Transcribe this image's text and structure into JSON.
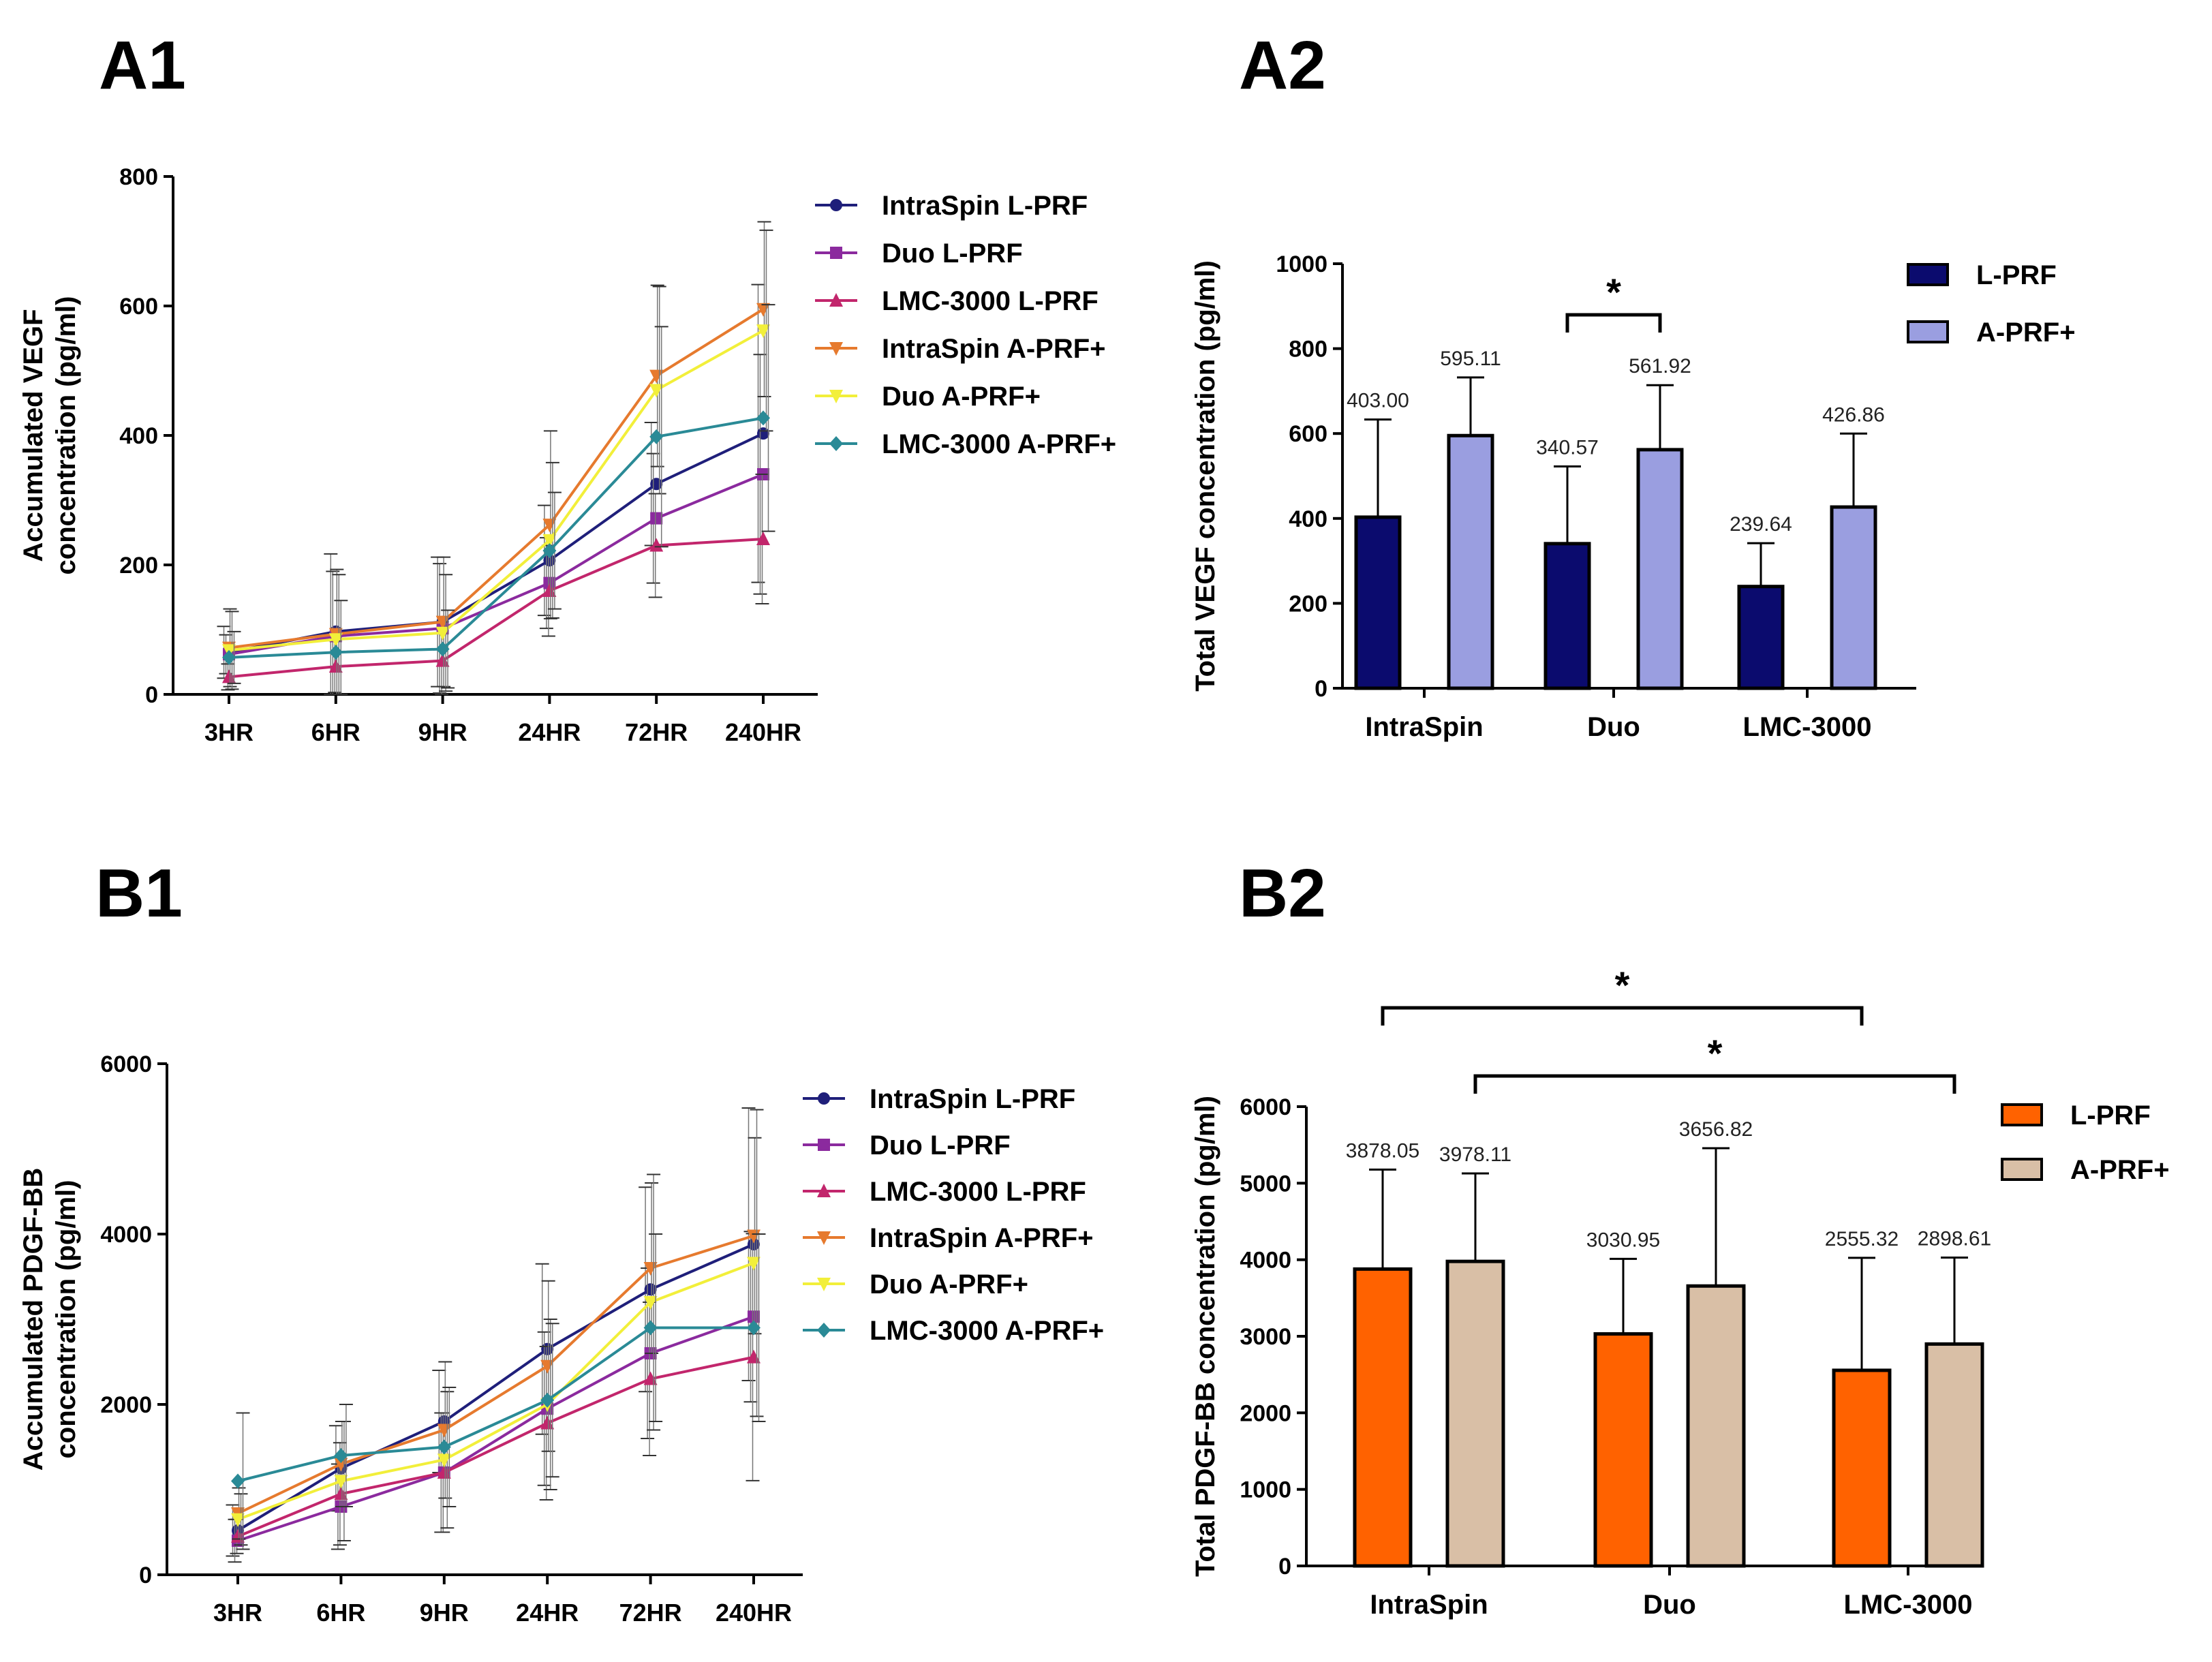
{
  "panels": {
    "a1": "A1",
    "a2": "A2",
    "b1": "B1",
    "b2": "B2"
  },
  "chart_data": [
    {
      "id": "A1",
      "type": "line",
      "ylabel_line1": "Accumulated VEGF",
      "ylabel_line2": "concentration (pg/ml)",
      "ylim": [
        0,
        800
      ],
      "yticks": [
        "0",
        "200",
        "400",
        "600",
        "800"
      ],
      "categories": [
        "3HR",
        "6HR",
        "9HR",
        "24HR",
        "72HR",
        "240HR"
      ],
      "series": [
        {
          "name": "IntraSpin L-PRF",
          "color": "#1f1f7a",
          "marker": "circle",
          "values": [
            65,
            97,
            112,
            207,
            325,
            403
          ],
          "err": [
            40,
            120,
            100,
            85,
            95,
            230
          ]
        },
        {
          "name": "Duo L-PRF",
          "color": "#8b2a9e",
          "marker": "square",
          "values": [
            62,
            90,
            102,
            172,
            272,
            340
          ],
          "err": [
            30,
            100,
            100,
            70,
            100,
            185
          ]
        },
        {
          "name": "LMC-3000 L-PRF",
          "color": "#c2266c",
          "marker": "triangle-up",
          "values": [
            27,
            43,
            52,
            160,
            230,
            240
          ],
          "err": [
            20,
            40,
            60,
            70,
            80,
            100
          ]
        },
        {
          "name": "IntraSpin A-PRF+",
          "color": "#e67a2e",
          "marker": "triangle-down",
          "values": [
            72,
            93,
            112,
            262,
            492,
            595
          ],
          "err": [
            60,
            100,
            100,
            145,
            140,
            135
          ]
        },
        {
          "name": "Duo A-PRF+",
          "color": "#f2ef3a",
          "marker": "triangle-down",
          "values": [
            68,
            85,
            95,
            238,
            470,
            562
          ],
          "err": [
            60,
            100,
            90,
            120,
            160,
            155
          ]
        },
        {
          "name": "LMC-3000 A-PRF+",
          "color": "#2a8a96",
          "marker": "diamond",
          "values": [
            57,
            65,
            70,
            222,
            398,
            427
          ],
          "err": [
            40,
            80,
            60,
            90,
            170,
            175
          ]
        }
      ]
    },
    {
      "id": "A2",
      "type": "bar",
      "ylabel": "Total VEGF concentration (pg/ml)",
      "ylim": [
        0,
        1000
      ],
      "yticks": [
        "0",
        "200",
        "400",
        "600",
        "800",
        "1000"
      ],
      "categories": [
        "IntraSpin",
        "Duo",
        "LMC-3000"
      ],
      "series": [
        {
          "name": "L-PRF",
          "color": "#0b0b6e",
          "values": [
            403.0,
            340.57,
            239.64
          ],
          "labels": [
            "403.00",
            "340.57",
            "239.64"
          ],
          "err": [
            230,
            182,
            102
          ]
        },
        {
          "name": "A-PRF+",
          "color": "#9a9ee0",
          "values": [
            595.11,
            561.92,
            426.86
          ],
          "labels": [
            "595.11",
            "561.92",
            "426.86"
          ],
          "err": [
            137,
            152,
            173
          ]
        }
      ],
      "significance": [
        {
          "label": "*",
          "from": "Duo L-PRF",
          "to": "Duo A-PRF+"
        }
      ]
    },
    {
      "id": "B1",
      "type": "line",
      "ylabel_line1": "Accumulated PDGF-BB",
      "ylabel_line2": "concentration (pg/ml)",
      "ylim": [
        0,
        6000
      ],
      "yticks": [
        "0",
        "2000",
        "4000",
        "6000"
      ],
      "categories": [
        "3HR",
        "6HR",
        "9HR",
        "24HR",
        "72HR",
        "240HR"
      ],
      "series": [
        {
          "name": "IntraSpin L-PRF",
          "color": "#1f1f7a",
          "marker": "circle",
          "values": [
            520,
            1250,
            1800,
            2650,
            3350,
            3880
          ],
          "err": [
            300,
            500,
            600,
            1000,
            1200,
            1600
          ]
        },
        {
          "name": "Duo L-PRF",
          "color": "#8b2a9e",
          "marker": "square",
          "values": [
            400,
            800,
            1200,
            1950,
            2600,
            3030
          ],
          "err": [
            250,
            500,
            700,
            900,
            1000,
            1000
          ]
        },
        {
          "name": "LMC-3000 L-PRF",
          "color": "#c2266c",
          "marker": "triangle-up",
          "values": [
            450,
            950,
            1200,
            1780,
            2300,
            2555
          ],
          "err": [
            200,
            600,
            700,
            900,
            900,
            1450
          ]
        },
        {
          "name": "IntraSpin A-PRF+",
          "color": "#e67a2e",
          "marker": "triangle-down",
          "values": [
            720,
            1300,
            1700,
            2450,
            3600,
            3980
          ],
          "err": [
            300,
            500,
            800,
            1000,
            1000,
            1150
          ]
        },
        {
          "name": "Duo A-PRF+",
          "color": "#f2ef3a",
          "marker": "triangle-down",
          "values": [
            650,
            1100,
            1350,
            2000,
            3200,
            3660
          ],
          "err": [
            300,
            700,
            800,
            1000,
            1500,
            1800
          ]
        },
        {
          "name": "LMC-3000 A-PRF+",
          "color": "#2a8a96",
          "marker": "diamond",
          "values": [
            1100,
            1400,
            1500,
            2050,
            2900,
            2900
          ],
          "err": [
            800,
            600,
            700,
            900,
            1100,
            1100
          ]
        }
      ]
    },
    {
      "id": "B2",
      "type": "bar",
      "ylabel": "Total PDGF-BB concentration (pg/ml)",
      "ylim": [
        0,
        6000
      ],
      "yticks": [
        "0",
        "1000",
        "2000",
        "3000",
        "4000",
        "5000",
        "6000"
      ],
      "categories": [
        "IntraSpin",
        "Duo",
        "LMC-3000"
      ],
      "series": [
        {
          "name": "L-PRF",
          "color": "#ff6200",
          "values": [
            3878.05,
            3030.95,
            2555.32
          ],
          "labels": [
            "3878.05",
            "3030.95",
            "2555.32"
          ],
          "err": [
            1300,
            980,
            1470
          ]
        },
        {
          "name": "A-PRF+",
          "color": "#d9bfa6",
          "values": [
            3978.11,
            3656.82,
            2898.61
          ],
          "labels": [
            "3978.11",
            "3656.82",
            "2898.61"
          ],
          "err": [
            1150,
            1800,
            1130
          ]
        }
      ],
      "significance": [
        {
          "label": "*",
          "from": "IntraSpin L-PRF",
          "to": "LMC-3000 L-PRF"
        },
        {
          "label": "*",
          "from": "IntraSpin A-PRF+",
          "to": "LMC-3000 A-PRF+"
        }
      ]
    }
  ]
}
